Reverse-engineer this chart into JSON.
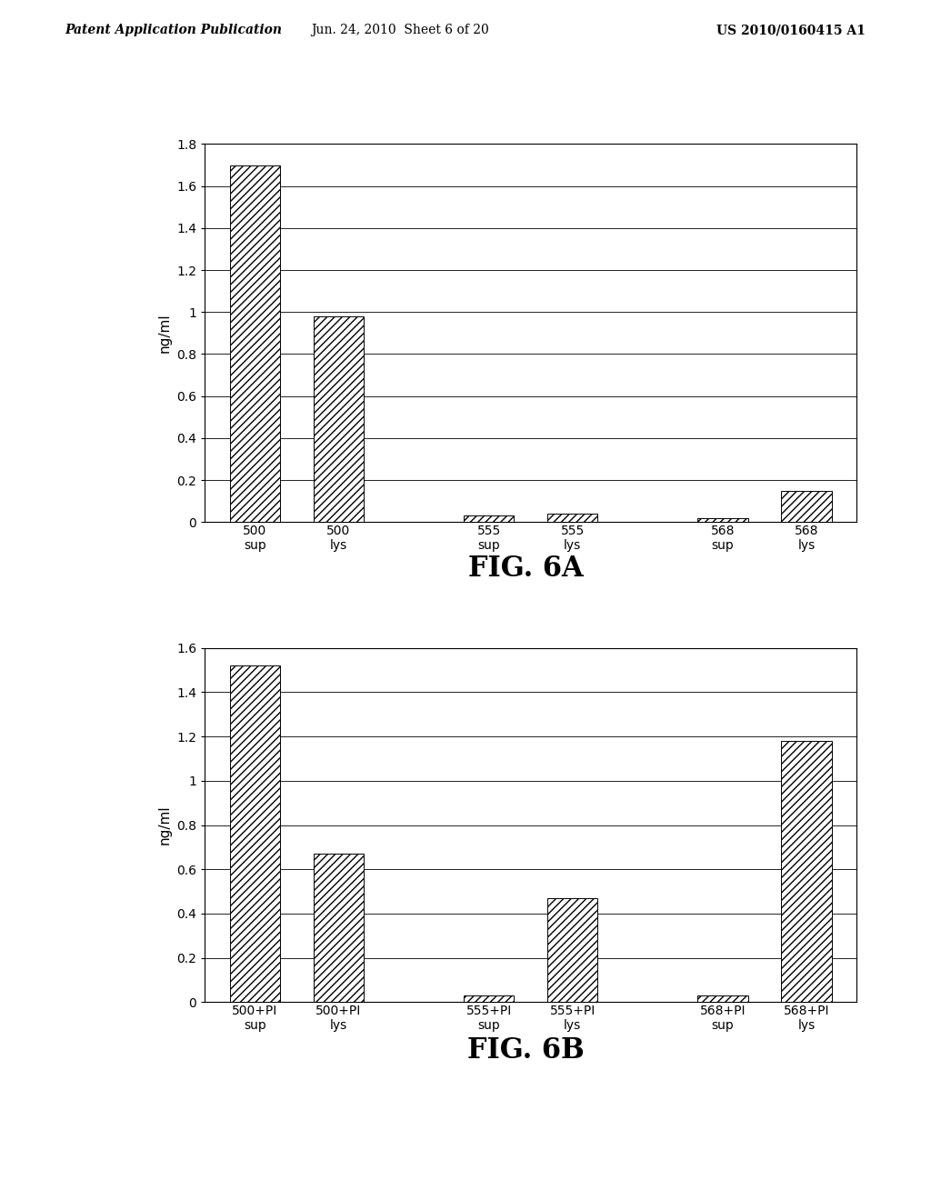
{
  "fig6a": {
    "categories_line1": [
      "500",
      "500",
      "555",
      "555",
      "568",
      "568"
    ],
    "categories_line2": [
      "sup",
      "lys",
      "sup",
      "lys",
      "sup",
      "lys"
    ],
    "values": [
      1.7,
      0.98,
      0.03,
      0.04,
      0.02,
      0.15
    ],
    "ylabel": "ng/ml",
    "ylim": [
      0,
      1.8
    ],
    "yticks": [
      0,
      0.2,
      0.4,
      0.6,
      0.8,
      1.0,
      1.2,
      1.4,
      1.6,
      1.8
    ],
    "ytick_labels": [
      "0",
      "0.2",
      "0.4",
      "0.6",
      "0.8",
      "1",
      "1.2",
      "1.4",
      "1.6",
      "1.8"
    ],
    "title": "FIG. 6A"
  },
  "fig6b": {
    "categories_line1": [
      "500+PI",
      "500+PI",
      "555+PI",
      "555+PI",
      "568+PI",
      "568+PI"
    ],
    "categories_line2": [
      "sup",
      "lys",
      "sup",
      "lys",
      "sup",
      "lys"
    ],
    "values": [
      1.52,
      0.67,
      0.03,
      0.47,
      0.03,
      1.18
    ],
    "ylabel": "ng/ml",
    "ylim": [
      0,
      1.6
    ],
    "yticks": [
      0,
      0.2,
      0.4,
      0.6,
      0.8,
      1.0,
      1.2,
      1.4,
      1.6
    ],
    "ytick_labels": [
      "0",
      "0.2",
      "0.4",
      "0.6",
      "0.8",
      "1",
      "1.2",
      "1.4",
      "1.6"
    ],
    "title": "FIG. 6B"
  },
  "header_left": "Patent Application Publication",
  "header_center": "Jun. 24, 2010  Sheet 6 of 20",
  "header_right": "US 2010/0160415 A1",
  "bg_color": "#ffffff",
  "hatch_pattern": "////",
  "bar_edge_color": "#000000",
  "bar_width": 0.6,
  "title_fontsize": 22,
  "axis_fontsize": 11,
  "tick_fontsize": 10,
  "header_fontsize": 10
}
